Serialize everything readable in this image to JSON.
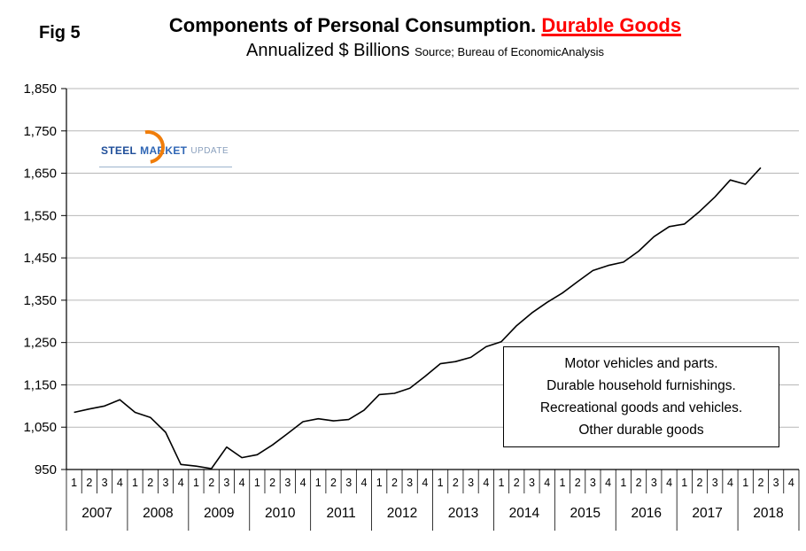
{
  "header": {
    "fig_label": "Fig 5",
    "title_main": "Components of Personal Consumption. ",
    "title_highlight": "Durable Goods",
    "subtitle": "Annualized $ Billions",
    "source": "Source; Bureau of EconomicAnalysis"
  },
  "logo": {
    "steel": "STEEL",
    "market": "MARKET",
    "update": "UPDATE"
  },
  "legend": {
    "lines": [
      "Motor vehicles and parts.",
      "Durable household furnishings.",
      "Recreational goods and vehicles.",
      "Other durable goods"
    ]
  },
  "colors": {
    "highlight_red": "#ff0000",
    "grid": "#b7b7b7",
    "line": "#000000",
    "logo_blue": "#1f4e99",
    "logo_orange": "#f07d0a"
  },
  "chart_data": {
    "type": "line",
    "title": "Components of Personal Consumption. Durable Goods",
    "subtitle": "Annualized $ Billions",
    "source": "Source; Bureau of EconomicAnalysis",
    "xlabel": "",
    "ylabel": "",
    "grid": true,
    "legend_position": "inside lower right",
    "ylim": [
      950,
      1850
    ],
    "ytick_values": [
      1850,
      1750,
      1650,
      1550,
      1450,
      1350,
      1250,
      1150,
      1050,
      950
    ],
    "ytick_labels": [
      "1,850",
      "1,750",
      "1,650",
      "1,550",
      "1,450",
      "1,350",
      "1,250",
      "1,150",
      "1,050",
      "950"
    ],
    "quarter_labels": [
      "1",
      "2",
      "3",
      "4"
    ],
    "years": [
      "2007",
      "2008",
      "2009",
      "2010",
      "2011",
      "2012",
      "2013",
      "2014",
      "2015",
      "2016",
      "2017",
      "2018"
    ],
    "series": [
      {
        "name": "Durable Goods (Motor vehicles and parts; Durable household furnishings; Recreational goods and vehicles; Other durable goods)",
        "values": [
          1085,
          1093,
          1100,
          1115,
          1085,
          1073,
          1038,
          962,
          958,
          952,
          1003,
          978,
          985,
          1008,
          1035,
          1063,
          1070,
          1065,
          1068,
          1090,
          1127,
          1130,
          1142,
          1170,
          1200,
          1205,
          1215,
          1240,
          1252,
          1290,
          1320,
          1345,
          1367,
          1394,
          1420,
          1432,
          1440,
          1466,
          1500,
          1524,
          1530,
          1560,
          1594,
          1634,
          1624,
          1663
        ]
      }
    ]
  }
}
